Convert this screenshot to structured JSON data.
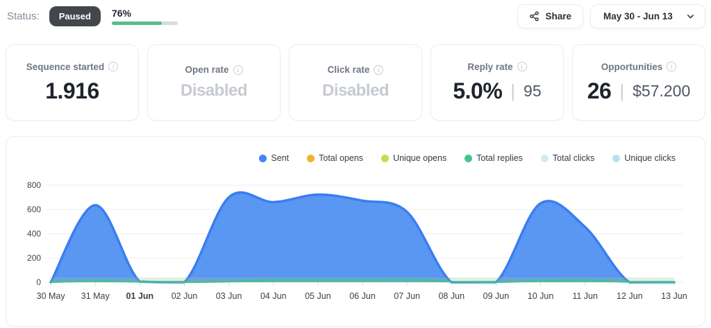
{
  "header": {
    "status_label": "Status:",
    "status_value": "Paused",
    "progress_percent": "76%",
    "progress_value": 76,
    "progress_color": "#55BE8B",
    "share_label": "Share",
    "date_range": "May 30 - Jun 13"
  },
  "stats": {
    "cards": [
      {
        "label": "Sequence started",
        "value": "1.916",
        "muted": false,
        "secondary": ""
      },
      {
        "label": "Open rate",
        "value": "Disabled",
        "muted": true,
        "secondary": ""
      },
      {
        "label": "Click rate",
        "value": "Disabled",
        "muted": true,
        "secondary": ""
      },
      {
        "label": "Reply rate",
        "value": "5.0%",
        "muted": false,
        "secondary": "95"
      },
      {
        "label": "Opportunities",
        "value": "26",
        "muted": false,
        "secondary": "$57.200"
      }
    ]
  },
  "chart_data": {
    "type": "area",
    "x": [
      "30 May",
      "31 May",
      "01 Jun",
      "02 Jun",
      "03 Jun",
      "04 Jun",
      "05 Jun",
      "06 Jun",
      "07 Jun",
      "08 Jun",
      "09 Jun",
      "10 Jun",
      "11 Jun",
      "12 Jun",
      "13 Jun"
    ],
    "bold_ticks": [
      "01 Jun"
    ],
    "ylim": [
      0,
      800
    ],
    "yticks": [
      0,
      200,
      400,
      600,
      800
    ],
    "grid": true,
    "legend_position": "top-right",
    "series": [
      {
        "name": "Sent",
        "color": "#4285F4",
        "stroke": "#3B7DF0",
        "fill": "#5191F1",
        "values": [
          0,
          635,
          5,
          0,
          700,
          660,
          722,
          672,
          580,
          0,
          0,
          650,
          455,
          0,
          0
        ]
      },
      {
        "name": "Total opens",
        "color": "#F2B137",
        "values": [
          0,
          0,
          0,
          0,
          0,
          0,
          0,
          0,
          0,
          0,
          0,
          0,
          0,
          0,
          0
        ]
      },
      {
        "name": "Unique opens",
        "color": "#BCE24B",
        "values": [
          0,
          0,
          0,
          0,
          0,
          0,
          0,
          0,
          0,
          0,
          0,
          0,
          0,
          0,
          0
        ]
      },
      {
        "name": "Total replies",
        "color": "#47C48D",
        "stroke": "#44C287",
        "values": [
          0,
          8,
          3,
          0,
          5,
          15,
          18,
          16,
          20,
          4,
          0,
          10,
          14,
          2,
          0
        ]
      },
      {
        "name": "Total clicks",
        "color": "#D3EAF7",
        "values": [
          0,
          0,
          0,
          0,
          0,
          0,
          0,
          0,
          0,
          0,
          0,
          0,
          0,
          0,
          0
        ]
      },
      {
        "name": "Unique clicks",
        "color": "#B8E0F2",
        "values": [
          0,
          0,
          0,
          0,
          0,
          0,
          0,
          0,
          0,
          0,
          0,
          0,
          0,
          0,
          0
        ]
      }
    ]
  }
}
